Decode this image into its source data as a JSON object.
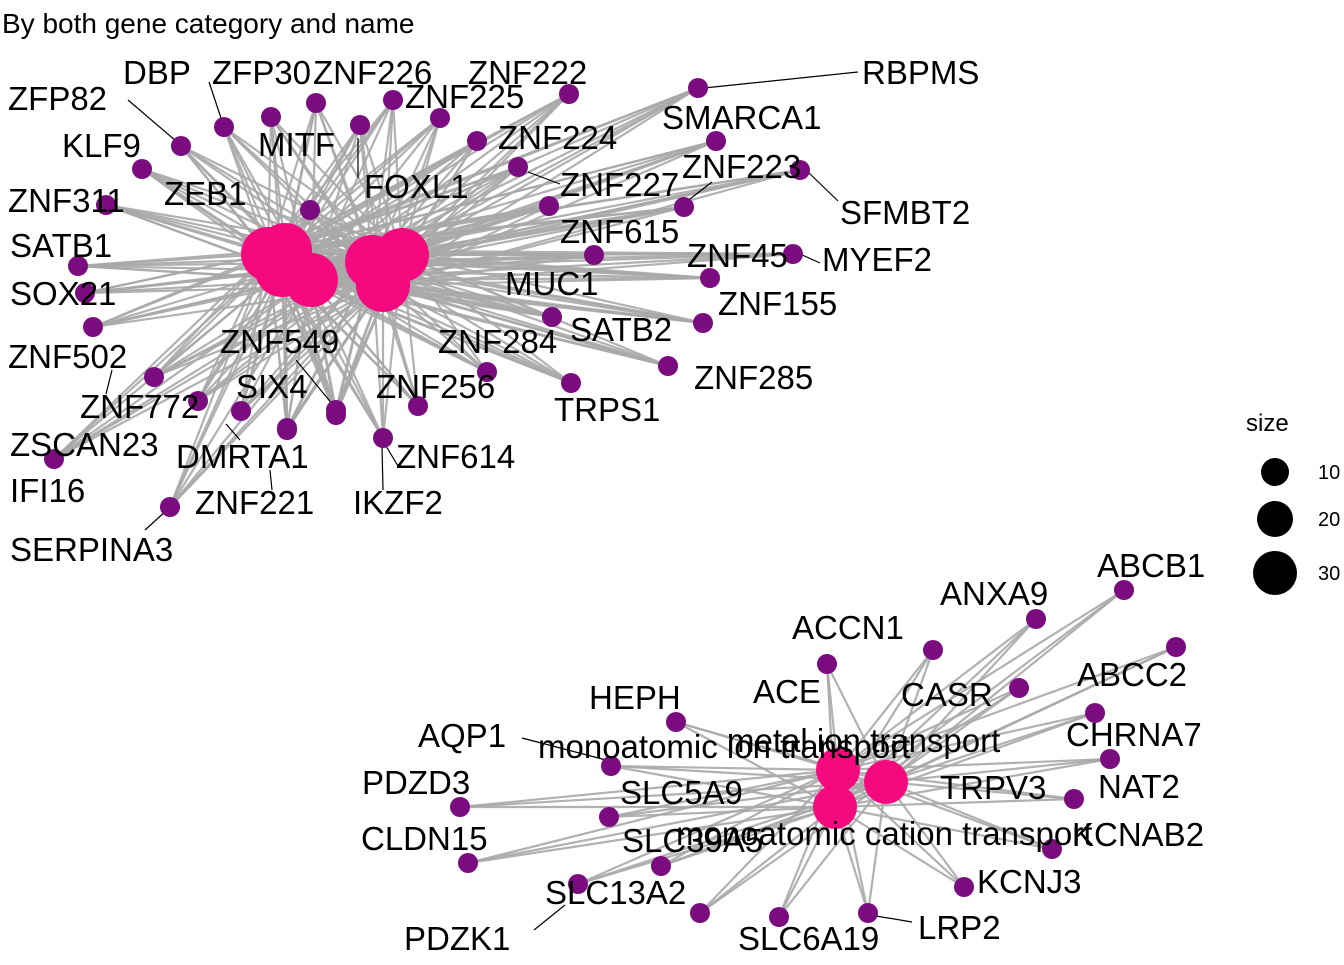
{
  "title": "By both gene category and name",
  "colors": {
    "category_node": "#f4097e",
    "gene_node": "#7b0c80",
    "edge": "#a9a9a9",
    "leader": "#000000"
  },
  "legend": {
    "title": "size",
    "entries": [
      {
        "label": "10",
        "value": 10
      },
      {
        "label": "20",
        "value": 20
      },
      {
        "label": "30",
        "value": 30
      }
    ]
  },
  "networks": [
    {
      "name": "cluster-1",
      "categories": [
        {
          "label": ""
        },
        {
          "label": ""
        },
        {
          "label": ""
        },
        {
          "label": ""
        },
        {
          "label": ""
        },
        {
          "label": ""
        }
      ],
      "genes": [
        "ZFP82",
        "KLF9",
        "ZNF311",
        "SATB1",
        "SOX21",
        "ZNF502",
        "ZNF772",
        "ZSCAN23",
        "IFI16",
        "SERPINA3",
        "DBP",
        "ZFP30",
        "ZNF226",
        "ZNF222",
        "ZNF225",
        "MITF",
        "FOXL1",
        "ZEB1",
        "ZNF224",
        "ZNF227",
        "ZNF223",
        "SMARCA1",
        "RBPMS",
        "SFMBT2",
        "MYEF2",
        "ZNF615",
        "ZNF45",
        "ZNF155",
        "MUC1",
        "SATB2",
        "ZNF285",
        "ZNF284",
        "TRPS1",
        "ZNF256",
        "ZNF614",
        "IKZF2",
        "ZNF549",
        "SIX4",
        "DMRTA1",
        "ZNF221"
      ]
    },
    {
      "name": "cluster-2",
      "categories": [
        {
          "label": "monoatomic ion transport"
        },
        {
          "label": "metal ion transport"
        },
        {
          "label": "monoatomic cation transport"
        }
      ],
      "genes": [
        "ABCB1",
        "ANXA9",
        "ACCN1",
        "ACE",
        "CASR",
        "ABCC2",
        "HEPH",
        "AQP1",
        "CHRNA7",
        "NAT2",
        "PDZD3",
        "TRPV3",
        "KCNAB2",
        "CLDN15",
        "SLC5A9",
        "SLC39A5",
        "KCNJ3",
        "SLC13A2",
        "PDZK1",
        "SLC6A19",
        "LRP2"
      ]
    }
  ]
}
